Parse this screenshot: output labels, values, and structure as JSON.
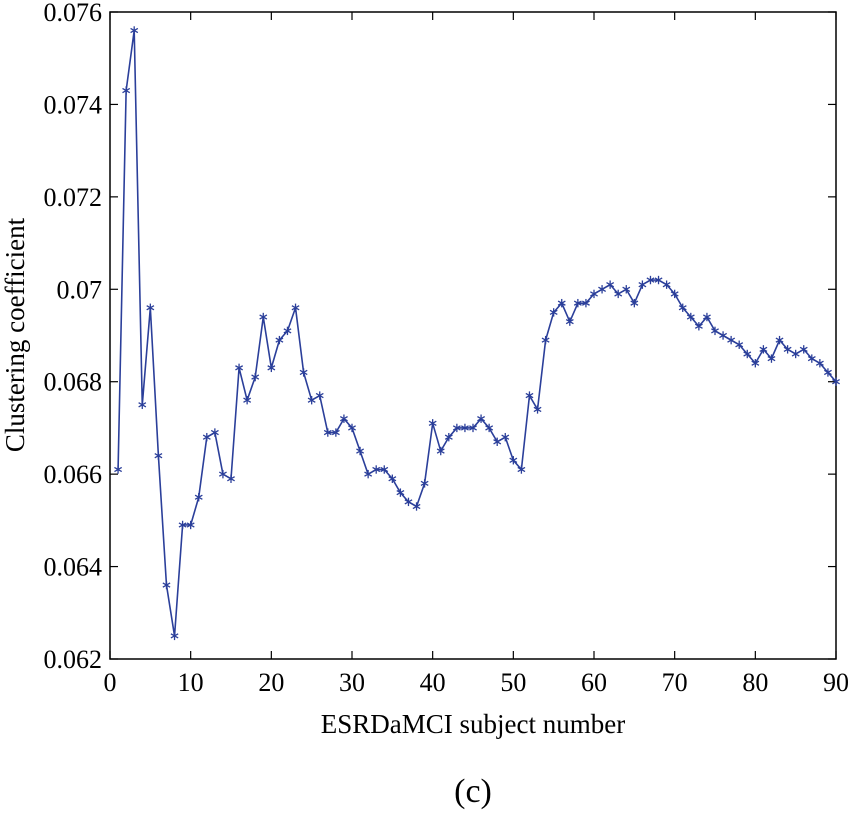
{
  "panel_label": "(c)",
  "chart_data": {
    "type": "line",
    "title": "",
    "xlabel": "ESRDaMCI subject number",
    "ylabel": "Clustering coefficient",
    "xlim": [
      0,
      90
    ],
    "ylim": [
      0.062,
      0.076
    ],
    "xticks": [
      0,
      10,
      20,
      30,
      40,
      50,
      60,
      70,
      80,
      90
    ],
    "xtick_labels": [
      "0",
      "10",
      "20",
      "30",
      "40",
      "50",
      "60",
      "70",
      "80",
      "90"
    ],
    "yticks": [
      0.062,
      0.064,
      0.066,
      0.068,
      0.07,
      0.072,
      0.074,
      0.076
    ],
    "ytick_labels": [
      "0.062",
      "0.064",
      "0.066",
      "0.068",
      "0.07",
      "0.072",
      "0.074",
      "0.076"
    ],
    "grid": false,
    "legend": "none",
    "marker": "asterisk",
    "line_color": "#2b3f9a",
    "series": [
      {
        "x": [
          1,
          2,
          3,
          4,
          5,
          6,
          7,
          8,
          9,
          10,
          11,
          12,
          13,
          14,
          15,
          16,
          17,
          18,
          19,
          20,
          21,
          22,
          23,
          24,
          25,
          26,
          27,
          28,
          29,
          30,
          31,
          32,
          33,
          34,
          35,
          36,
          37,
          38,
          39,
          40,
          41,
          42,
          43,
          44,
          45,
          46,
          47,
          48,
          49,
          50,
          51,
          52,
          53,
          54,
          55,
          56,
          57,
          58,
          59,
          60,
          61,
          62,
          63,
          64,
          65,
          66,
          67,
          68,
          69,
          70,
          71,
          72,
          73,
          74,
          75,
          76,
          77,
          78,
          79,
          80,
          81,
          82,
          83,
          84,
          85,
          86,
          87,
          88,
          89,
          90
        ],
        "values": [
          0.0661,
          0.0743,
          0.0756,
          0.0675,
          0.0696,
          0.0664,
          0.0636,
          0.0625,
          0.0649,
          0.0649,
          0.0655,
          0.0668,
          0.0669,
          0.066,
          0.0659,
          0.0683,
          0.0676,
          0.0681,
          0.0694,
          0.0683,
          0.0689,
          0.0691,
          0.0696,
          0.0682,
          0.0676,
          0.0677,
          0.0669,
          0.0669,
          0.0672,
          0.067,
          0.0665,
          0.066,
          0.0661,
          0.0661,
          0.0659,
          0.0656,
          0.0654,
          0.0653,
          0.0658,
          0.0671,
          0.0665,
          0.0668,
          0.067,
          0.067,
          0.067,
          0.0672,
          0.067,
          0.0667,
          0.0668,
          0.0663,
          0.0661,
          0.0677,
          0.0674,
          0.0689,
          0.0695,
          0.0697,
          0.0693,
          0.0697,
          0.0697,
          0.0699,
          0.07,
          0.0701,
          0.0699,
          0.07,
          0.0697,
          0.0701,
          0.0702,
          0.0702,
          0.0701,
          0.0699,
          0.0696,
          0.0694,
          0.0692,
          0.0694,
          0.0691,
          0.069,
          0.0689,
          0.0688,
          0.0686,
          0.0684,
          0.0687,
          0.0685,
          0.0689,
          0.0687,
          0.0686,
          0.0687,
          0.0685,
          0.0684,
          0.0682,
          0.068
        ]
      }
    ]
  }
}
